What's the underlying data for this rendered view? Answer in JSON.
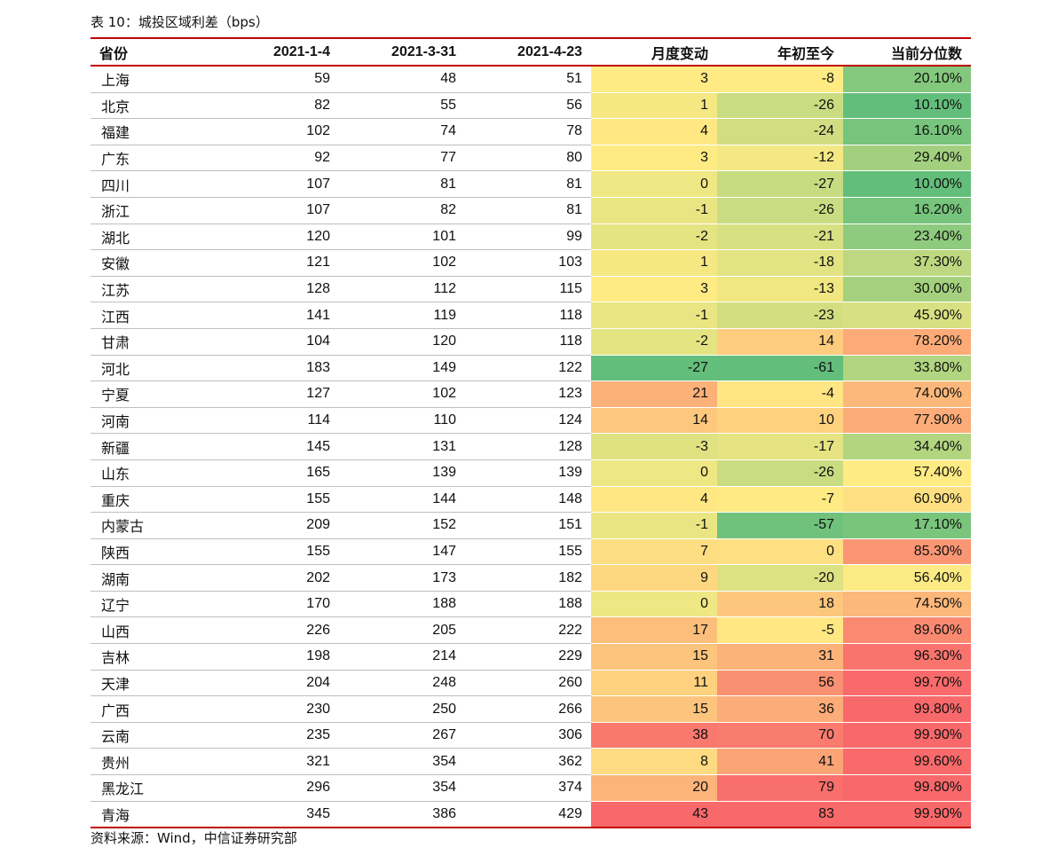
{
  "caption": "表 10：城投区域利差（bps）",
  "source": "资料来源：Wind，中信证券研究部",
  "palette": {
    "green": "#63be7b",
    "yellow": "#ffeb84",
    "red": "#f8696b",
    "header_rule": "#c00000",
    "row_rule": "#bfbfbf"
  },
  "table": {
    "headers": [
      "省份",
      "2021-1-4",
      "2021-3-31",
      "2021-4-23",
      "月度变动",
      "年初至今",
      "当前分位数"
    ],
    "rows": [
      [
        "上海",
        "59",
        "48",
        "51",
        "3",
        "-8",
        "20.10%"
      ],
      [
        "北京",
        "82",
        "55",
        "56",
        "1",
        "-26",
        "10.10%"
      ],
      [
        "福建",
        "102",
        "74",
        "78",
        "4",
        "-24",
        "16.10%"
      ],
      [
        "广东",
        "92",
        "77",
        "80",
        "3",
        "-12",
        "29.40%"
      ],
      [
        "四川",
        "107",
        "81",
        "81",
        "0",
        "-27",
        "10.00%"
      ],
      [
        "浙江",
        "107",
        "82",
        "81",
        "-1",
        "-26",
        "16.20%"
      ],
      [
        "湖北",
        "120",
        "101",
        "99",
        "-2",
        "-21",
        "23.40%"
      ],
      [
        "安徽",
        "121",
        "102",
        "103",
        "1",
        "-18",
        "37.30%"
      ],
      [
        "江苏",
        "128",
        "112",
        "115",
        "3",
        "-13",
        "30.00%"
      ],
      [
        "江西",
        "141",
        "119",
        "118",
        "-1",
        "-23",
        "45.90%"
      ],
      [
        "甘肃",
        "104",
        "120",
        "118",
        "-2",
        "14",
        "78.20%"
      ],
      [
        "河北",
        "183",
        "149",
        "122",
        "-27",
        "-61",
        "33.80%"
      ],
      [
        "宁夏",
        "127",
        "102",
        "123",
        "21",
        "-4",
        "74.00%"
      ],
      [
        "河南",
        "114",
        "110",
        "124",
        "14",
        "10",
        "77.90%"
      ],
      [
        "新疆",
        "145",
        "131",
        "128",
        "-3",
        "-17",
        "34.40%"
      ],
      [
        "山东",
        "165",
        "139",
        "139",
        "0",
        "-26",
        "57.40%"
      ],
      [
        "重庆",
        "155",
        "144",
        "148",
        "4",
        "-7",
        "60.90%"
      ],
      [
        "内蒙古",
        "209",
        "152",
        "151",
        "-1",
        "-57",
        "17.10%"
      ],
      [
        "陕西",
        "155",
        "147",
        "155",
        "7",
        "0",
        "85.30%"
      ],
      [
        "湖南",
        "202",
        "173",
        "182",
        "9",
        "-20",
        "56.40%"
      ],
      [
        "辽宁",
        "170",
        "188",
        "188",
        "0",
        "18",
        "74.50%"
      ],
      [
        "山西",
        "226",
        "205",
        "222",
        "17",
        "-5",
        "89.60%"
      ],
      [
        "吉林",
        "198",
        "214",
        "229",
        "15",
        "31",
        "96.30%"
      ],
      [
        "天津",
        "204",
        "248",
        "260",
        "11",
        "56",
        "99.70%"
      ],
      [
        "广西",
        "230",
        "250",
        "266",
        "15",
        "36",
        "99.80%"
      ],
      [
        "云南",
        "235",
        "267",
        "306",
        "38",
        "70",
        "99.90%"
      ],
      [
        "贵州",
        "321",
        "354",
        "362",
        "8",
        "41",
        "99.60%"
      ],
      [
        "黑龙江",
        "296",
        "354",
        "374",
        "20",
        "79",
        "99.80%"
      ],
      [
        "青海",
        "345",
        "386",
        "429",
        "43",
        "83",
        "99.90%"
      ]
    ]
  }
}
